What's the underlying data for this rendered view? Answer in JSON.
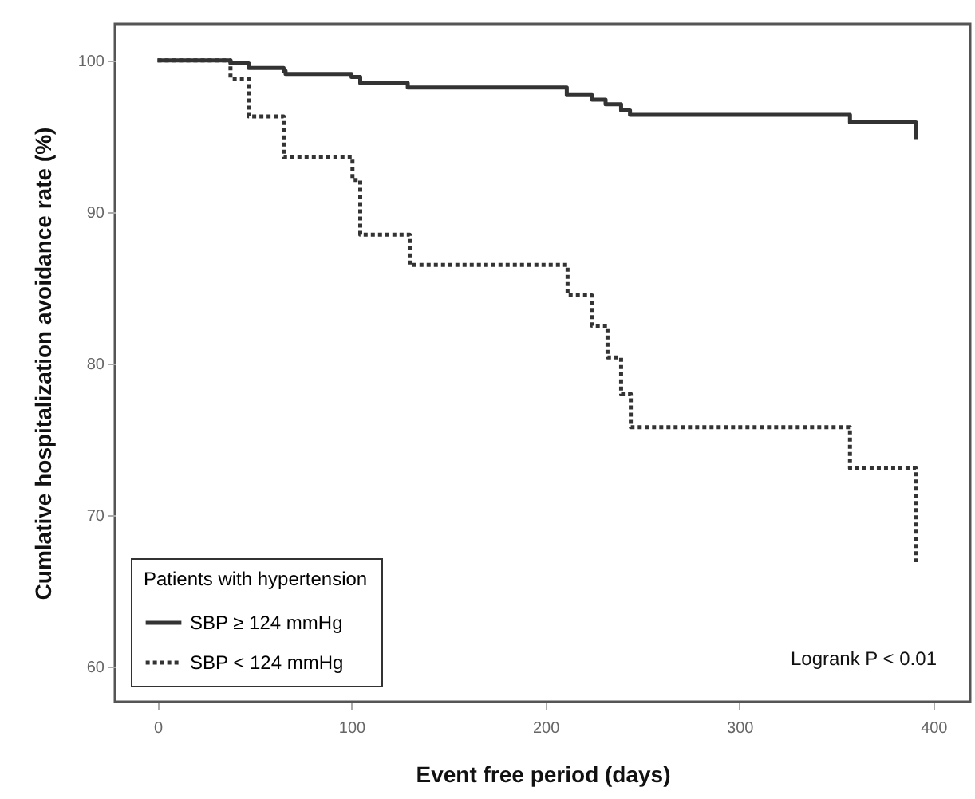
{
  "chart_data": {
    "type": "step",
    "xlabel": "Event free period (days)",
    "ylabel": "Cumlative hospitalization avoidance rate (%)",
    "legend_title": "Patients with hypertension",
    "xlim": [
      -22,
      419
    ],
    "ylim": [
      57.7,
      102.4
    ],
    "xticks": [
      0,
      100,
      200,
      300,
      400
    ],
    "yticks": [
      60,
      70,
      80,
      90,
      100
    ],
    "grid": false,
    "legend": "bottom left",
    "marker": "none",
    "series": [
      {
        "name": "SBP ≥ 124 mmHg",
        "color": "#333333",
        "line_style": "solid",
        "x": [
          0,
          37.6,
          47,
          65,
          66,
          100,
          104.5,
          129,
          211,
          224,
          231,
          239,
          243.6,
          357,
          391
        ],
        "values": [
          100,
          99.8,
          99.5,
          99.3,
          99.1,
          98.9,
          98.5,
          98.2,
          97.7,
          97.4,
          97.1,
          96.7,
          96.4,
          95.9,
          94.8
        ]
      },
      {
        "name": "SBP < 124 mmHg",
        "color": "#333333",
        "line_style": "dotted",
        "x": [
          0,
          37.6,
          47,
          65,
          100.5,
          104.5,
          130,
          211.4,
          224,
          232,
          239,
          244,
          357,
          391
        ],
        "values": [
          100,
          98.8,
          96.3,
          93.6,
          92.1,
          88.5,
          86.5,
          84.5,
          82.5,
          80.4,
          78,
          75.8,
          73.1,
          66.9
        ]
      }
    ],
    "annotations": [
      "Logrank P < 0.01"
    ]
  }
}
